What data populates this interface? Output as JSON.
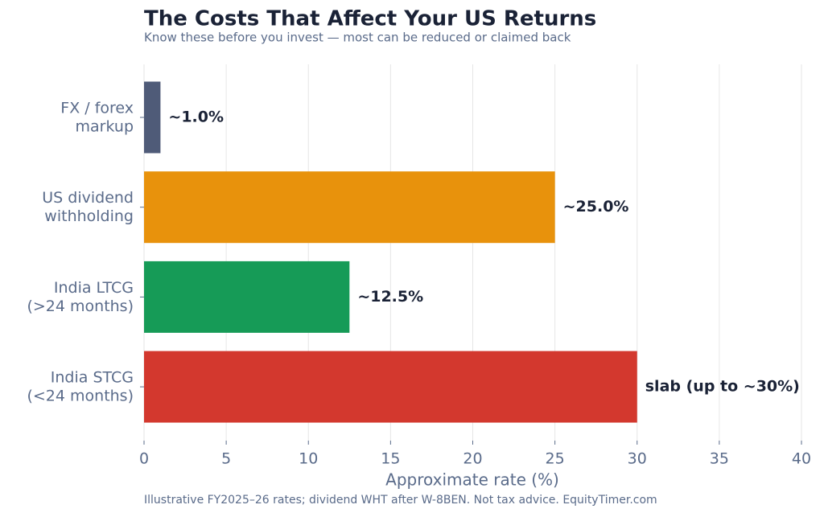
{
  "chart_data": {
    "type": "barh",
    "title": "The Costs That Affect Your US Returns",
    "subtitle": "Know these before you invest — most can be reduced or claimed back",
    "x_label": "Approximate rate (%)",
    "footnote": "Illustrative FY2025–26 rates; dividend WHT after W-8BEN. Not tax advice. EquityTimer.com",
    "categories": [
      "FX / forex\nmarkup",
      "US dividend\nwithholding",
      "India LTCG\n(>24 months)",
      "India STCG\n(<24 months)"
    ],
    "values": [
      1.0,
      25.0,
      12.5,
      30
    ],
    "value_labels": [
      "~1.0%",
      "~25.0%",
      "~12.5%",
      "slab (up to ~30%)"
    ],
    "colors": [
      "#4f5b78",
      "#e8920c",
      "#169b57",
      "#d3382e"
    ],
    "xlim": [
      0,
      40
    ],
    "xticks": [
      0,
      5,
      10,
      15,
      20,
      25,
      30,
      35,
      40
    ],
    "grid": true
  }
}
